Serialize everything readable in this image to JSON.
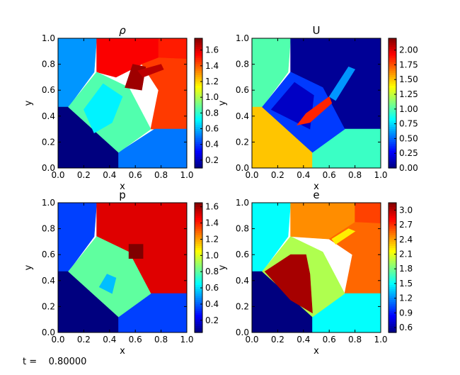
{
  "footer": {
    "time_label": "t =    0.80000"
  },
  "colors": {
    "jet": [
      "#00007f",
      "#0000ff",
      "#007fff",
      "#00ffff",
      "#7fff7f",
      "#ffff00",
      "#ff7f00",
      "#ff0000",
      "#7f0000"
    ]
  },
  "chart_data": [
    {
      "type": "heatmap",
      "title": "ρ",
      "xlabel": "x",
      "ylabel": "y",
      "xlim": [
        0,
        1
      ],
      "ylim": [
        0,
        1
      ],
      "xticks": [
        "0.0",
        "0.2",
        "0.4",
        "0.6",
        "0.8",
        "1.0"
      ],
      "yticks": [
        "0.0",
        "0.2",
        "0.4",
        "0.6",
        "0.8",
        "1.0"
      ],
      "colorbar": {
        "range": [
          0.1,
          1.75
        ],
        "ticks": [
          "0.2",
          "0.4",
          "0.6",
          "0.8",
          "1.0",
          "1.2",
          "1.4",
          "1.6"
        ]
      },
      "regions": [
        {
          "value": 0.55,
          "poly": [
            [
              0,
              0
            ],
            [
              0,
              1
            ],
            [
              0.3,
              1
            ],
            [
              0.28,
              0.74
            ],
            [
              0.08,
              0.47
            ],
            [
              0,
              0.47
            ]
          ]
        },
        {
          "value": 1.55,
          "poly": [
            [
              0.3,
              1
            ],
            [
              0.78,
              1
            ],
            [
              0.78,
              0.85
            ],
            [
              0.65,
              0.8
            ],
            [
              0.45,
              0.7
            ],
            [
              0.3,
              0.74
            ]
          ]
        },
        {
          "value": 1.5,
          "poly": [
            [
              0.78,
              1
            ],
            [
              1,
              1
            ],
            [
              1,
              0.84
            ],
            [
              0.78,
              0.85
            ]
          ]
        },
        {
          "value": 1.45,
          "poly": [
            [
              0.78,
              0.85
            ],
            [
              1,
              0.84
            ],
            [
              1,
              0.3
            ],
            [
              0.72,
              0.3
            ],
            [
              0.78,
              0.6
            ],
            [
              0.65,
              0.8
            ]
          ]
        },
        {
          "value": 0.1,
          "poly": [
            [
              0,
              0
            ],
            [
              0,
              0.47
            ],
            [
              0.08,
              0.47
            ],
            [
              0.47,
              0.12
            ],
            [
              0.47,
              0
            ]
          ]
        },
        {
          "value": 0.5,
          "poly": [
            [
              0.47,
              0
            ],
            [
              0.47,
              0.12
            ],
            [
              0.75,
              0.3
            ],
            [
              1,
              0.3
            ],
            [
              1,
              0
            ]
          ]
        },
        {
          "value": 0.85,
          "poly": [
            [
              0.08,
              0.47
            ],
            [
              0.3,
              0.74
            ],
            [
              0.55,
              0.62
            ],
            [
              0.72,
              0.3
            ],
            [
              0.47,
              0.12
            ]
          ]
        },
        {
          "value": 0.7,
          "poly": [
            [
              0.2,
              0.45
            ],
            [
              0.35,
              0.65
            ],
            [
              0.5,
              0.55
            ],
            [
              0.42,
              0.35
            ],
            [
              0.28,
              0.27
            ]
          ]
        },
        {
          "value": 1.7,
          "poly": [
            [
              0.52,
              0.62
            ],
            [
              0.58,
              0.8
            ],
            [
              0.68,
              0.78
            ],
            [
              0.65,
              0.6
            ]
          ]
        },
        {
          "value": 1.65,
          "poly": [
            [
              0.62,
              0.75
            ],
            [
              0.8,
              0.8
            ],
            [
              0.82,
              0.76
            ],
            [
              0.66,
              0.7
            ]
          ]
        }
      ]
    },
    {
      "type": "heatmap",
      "title": "U",
      "xlabel": "x",
      "ylabel": "y",
      "xlim": [
        0,
        1
      ],
      "ylim": [
        0,
        1
      ],
      "xticks": [
        "0.0",
        "0.2",
        "0.4",
        "0.6",
        "0.8",
        "1.0"
      ],
      "yticks": [
        "0.0",
        "0.2",
        "0.4",
        "0.6",
        "0.8",
        "1.0"
      ],
      "colorbar": {
        "range": [
          0,
          2.2
        ],
        "ticks": [
          "0.00",
          "0.25",
          "0.50",
          "0.75",
          "1.00",
          "1.25",
          "1.50",
          "1.75",
          "2.00"
        ]
      },
      "regions": [
        {
          "value": 1.0,
          "poly": [
            [
              0,
              0.47
            ],
            [
              0,
              1
            ],
            [
              0.3,
              1
            ],
            [
              0.28,
              0.74
            ],
            [
              0.08,
              0.47
            ]
          ]
        },
        {
          "value": 0.05,
          "poly": [
            [
              0.3,
              1
            ],
            [
              1,
              1
            ],
            [
              1,
              0.3
            ],
            [
              0.72,
              0.3
            ],
            [
              0.55,
              0.62
            ],
            [
              0.3,
              0.74
            ]
          ]
        },
        {
          "value": 1.5,
          "poly": [
            [
              0,
              0
            ],
            [
              0,
              0.47
            ],
            [
              0.08,
              0.47
            ],
            [
              0.47,
              0.12
            ],
            [
              0.47,
              0
            ]
          ]
        },
        {
          "value": 0.95,
          "poly": [
            [
              0.47,
              0
            ],
            [
              0.47,
              0.12
            ],
            [
              0.72,
              0.3
            ],
            [
              1,
              0.3
            ],
            [
              1,
              0
            ]
          ]
        },
        {
          "value": 0.4,
          "poly": [
            [
              0.08,
              0.47
            ],
            [
              0.3,
              0.74
            ],
            [
              0.55,
              0.62
            ],
            [
              0.72,
              0.3
            ],
            [
              0.47,
              0.12
            ]
          ]
        },
        {
          "value": 0.15,
          "poly": [
            [
              0.15,
              0.45
            ],
            [
              0.33,
              0.66
            ],
            [
              0.48,
              0.56
            ],
            [
              0.45,
              0.3
            ]
          ]
        },
        {
          "value": 1.85,
          "poly": [
            [
              0.35,
              0.33
            ],
            [
              0.42,
              0.42
            ],
            [
              0.6,
              0.55
            ],
            [
              0.62,
              0.5
            ],
            [
              0.45,
              0.35
            ]
          ]
        },
        {
          "value": 0.6,
          "poly": [
            [
              0.6,
              0.55
            ],
            [
              0.75,
              0.78
            ],
            [
              0.8,
              0.76
            ],
            [
              0.65,
              0.52
            ]
          ]
        }
      ]
    },
    {
      "type": "heatmap",
      "title": "p",
      "xlabel": "x",
      "ylabel": "y",
      "xlim": [
        0,
        1
      ],
      "ylim": [
        0,
        1
      ],
      "xticks": [
        "0.0",
        "0.2",
        "0.4",
        "0.6",
        "0.8",
        "1.0"
      ],
      "yticks": [
        "0.0",
        "0.2",
        "0.4",
        "0.6",
        "0.8",
        "1.0"
      ],
      "colorbar": {
        "range": [
          0.05,
          1.65
        ],
        "ticks": [
          "0.2",
          "0.4",
          "0.6",
          "0.8",
          "1.0",
          "1.2",
          "1.4",
          "1.6"
        ]
      },
      "regions": [
        {
          "value": 0.35,
          "poly": [
            [
              0,
              0.47
            ],
            [
              0,
              1
            ],
            [
              0.3,
              1
            ],
            [
              0.28,
              0.74
            ],
            [
              0.08,
              0.47
            ]
          ]
        },
        {
          "value": 1.5,
          "poly": [
            [
              0.3,
              1
            ],
            [
              1,
              1
            ],
            [
              1,
              0.3
            ],
            [
              0.72,
              0.3
            ],
            [
              0.55,
              0.62
            ],
            [
              0.3,
              0.74
            ]
          ]
        },
        {
          "value": 0.05,
          "poly": [
            [
              0,
              0
            ],
            [
              0,
              0.47
            ],
            [
              0.08,
              0.47
            ],
            [
              0.47,
              0.12
            ],
            [
              0.47,
              0
            ]
          ]
        },
        {
          "value": 0.35,
          "poly": [
            [
              0.47,
              0
            ],
            [
              0.47,
              0.12
            ],
            [
              0.72,
              0.3
            ],
            [
              1,
              0.3
            ],
            [
              1,
              0
            ]
          ]
        },
        {
          "value": 0.8,
          "poly": [
            [
              0.08,
              0.47
            ],
            [
              0.3,
              0.74
            ],
            [
              0.55,
              0.62
            ],
            [
              0.72,
              0.3
            ],
            [
              0.47,
              0.12
            ]
          ]
        },
        {
          "value": 0.55,
          "poly": [
            [
              0.32,
              0.35
            ],
            [
              0.38,
              0.45
            ],
            [
              0.45,
              0.42
            ],
            [
              0.42,
              0.3
            ]
          ]
        },
        {
          "value": 1.65,
          "poly": [
            [
              0.55,
              0.57
            ],
            [
              0.55,
              0.68
            ],
            [
              0.66,
              0.68
            ],
            [
              0.66,
              0.57
            ]
          ]
        }
      ]
    },
    {
      "type": "heatmap",
      "title": "e",
      "xlabel": "x",
      "ylabel": "y",
      "xlim": [
        0,
        1
      ],
      "ylim": [
        0,
        1
      ],
      "xticks": [
        "0.0",
        "0.2",
        "0.4",
        "0.6",
        "0.8",
        "1.0"
      ],
      "yticks": [
        "0.0",
        "0.2",
        "0.4",
        "0.6",
        "0.8",
        "1.0"
      ],
      "colorbar": {
        "range": [
          0.5,
          3.15
        ],
        "ticks": [
          "0.6",
          "0.9",
          "1.2",
          "1.5",
          "1.8",
          "2.1",
          "2.4",
          "2.7",
          "3.0"
        ]
      },
      "regions": [
        {
          "value": 1.5,
          "poly": [
            [
              0,
              0.47
            ],
            [
              0,
              1
            ],
            [
              0.3,
              1
            ],
            [
              0.28,
              0.74
            ],
            [
              0.08,
              0.47
            ]
          ]
        },
        {
          "value": 2.45,
          "poly": [
            [
              0.3,
              1
            ],
            [
              0.8,
              1
            ],
            [
              0.8,
              0.85
            ],
            [
              0.6,
              0.72
            ],
            [
              0.3,
              0.74
            ]
          ]
        },
        {
          "value": 2.65,
          "poly": [
            [
              0.8,
              1
            ],
            [
              1,
              1
            ],
            [
              1,
              0.84
            ],
            [
              0.8,
              0.85
            ]
          ]
        },
        {
          "value": 2.55,
          "poly": [
            [
              0.8,
              0.85
            ],
            [
              1,
              0.84
            ],
            [
              1,
              0.3
            ],
            [
              0.72,
              0.3
            ],
            [
              0.78,
              0.6
            ],
            [
              0.6,
              0.72
            ]
          ]
        },
        {
          "value": 0.5,
          "poly": [
            [
              0,
              0
            ],
            [
              0,
              0.47
            ],
            [
              0.08,
              0.47
            ],
            [
              0.47,
              0.12
            ],
            [
              0.47,
              0
            ]
          ]
        },
        {
          "value": 1.5,
          "poly": [
            [
              0.47,
              0
            ],
            [
              0.47,
              0.12
            ],
            [
              0.72,
              0.3
            ],
            [
              1,
              0.3
            ],
            [
              1,
              0
            ]
          ]
        },
        {
          "value": 1.95,
          "poly": [
            [
              0.08,
              0.47
            ],
            [
              0.3,
              0.74
            ],
            [
              0.55,
              0.62
            ],
            [
              0.72,
              0.3
            ],
            [
              0.47,
              0.12
            ]
          ]
        },
        {
          "value": 3.05,
          "poly": [
            [
              0.1,
              0.47
            ],
            [
              0.3,
              0.6
            ],
            [
              0.42,
              0.6
            ],
            [
              0.45,
              0.45
            ],
            [
              0.47,
              0.15
            ],
            [
              0.3,
              0.25
            ]
          ]
        },
        {
          "value": 2.2,
          "poly": [
            [
              0.62,
              0.72
            ],
            [
              0.75,
              0.8
            ],
            [
              0.8,
              0.78
            ],
            [
              0.65,
              0.68
            ]
          ]
        }
      ]
    }
  ]
}
